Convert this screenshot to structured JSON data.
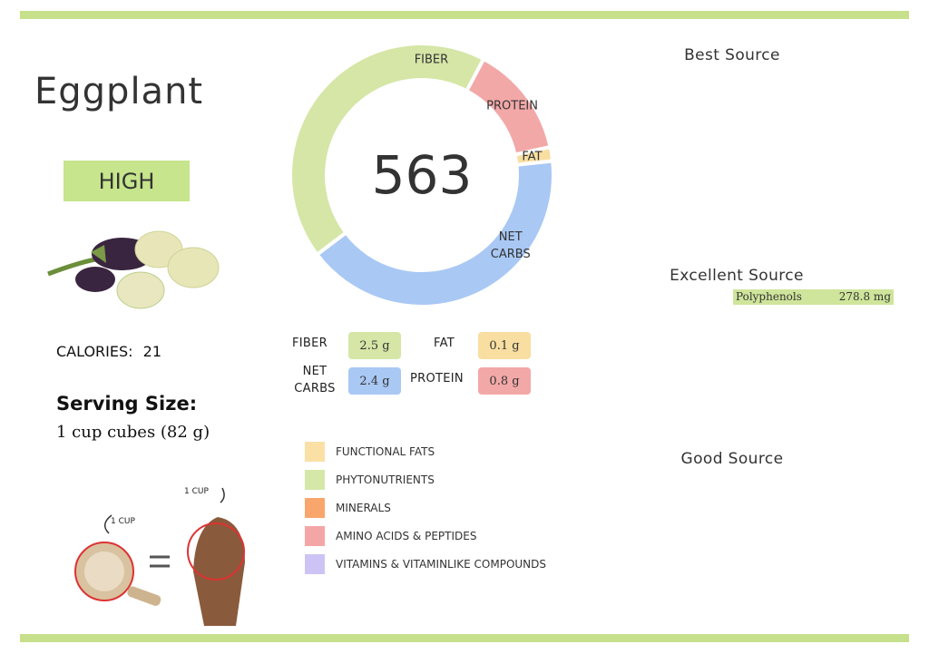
{
  "header": {
    "title": "Eggplant",
    "rating": "HIGH"
  },
  "calories": {
    "label": "CALORIES:",
    "value": 21
  },
  "serving": {
    "label": "Serving Size:",
    "value": "1 cup cubes (82 g)"
  },
  "measure": {
    "cup_label": "1 CUP",
    "fist_label": "1 CUP"
  },
  "chart_data": {
    "type": "donut",
    "center_label": "563",
    "categories": [
      "FIBER",
      "PROTEIN",
      "FAT",
      "NET CARBS"
    ],
    "values": [
      2.5,
      0.8,
      0.1,
      2.4
    ],
    "value_labels": [
      "2.5 g",
      "0.8 g",
      "0.1 g",
      "2.4 g"
    ],
    "colors": [
      "#d5e6a6",
      "#f3a8a8",
      "#f8dea1",
      "#a9c8f4"
    ]
  },
  "legend": [
    {
      "label": "FUNCTIONAL FATS",
      "color": "#fbe0a6"
    },
    {
      "label": "PHYTONUTRIENTS",
      "color": "#d5e8a8"
    },
    {
      "label": "MINERALS",
      "color": "#f9a66c"
    },
    {
      "label": "AMINO ACIDS & PEPTIDES",
      "color": "#f4a6a6"
    },
    {
      "label": "VITAMINS & VITAMINLIKE COMPOUNDS",
      "color": "#cdc4f5"
    }
  ],
  "sources": {
    "best": {
      "title": "Best Source"
    },
    "excellent": {
      "title": "Excellent Source",
      "items": [
        {
          "name": "Polyphenols",
          "amount": "278.8 mg"
        }
      ]
    },
    "good": {
      "title": "Good Source"
    }
  }
}
